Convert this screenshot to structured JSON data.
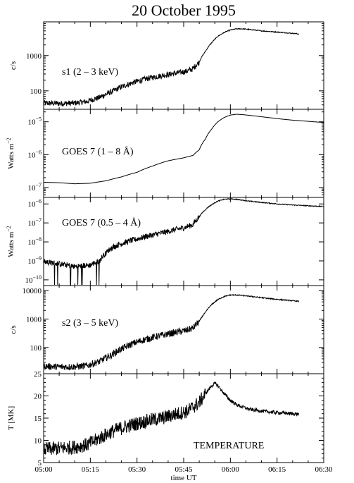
{
  "chart_data": {
    "title": "20 October 1995",
    "xlabel": "time UT",
    "x_ticks": [
      "05:00",
      "05:15",
      "05:30",
      "05:45",
      "06:00",
      "06:15",
      "06:30"
    ],
    "x_range_min": [
      0,
      90
    ],
    "panels": [
      {
        "type": "line",
        "label": "s1   (2 – 3 keV)",
        "ylabel": "c/s",
        "scale": "log",
        "ylim": [
          30,
          9000
        ],
        "ticks": [
          {
            "v": 100,
            "t": "100"
          },
          {
            "v": 1000,
            "t": "1000"
          }
        ],
        "minor_ticks": [
          40,
          50,
          60,
          70,
          80,
          90,
          200,
          300,
          400,
          500,
          600,
          700,
          800,
          900,
          2000,
          3000,
          4000,
          5000,
          6000,
          7000,
          8000,
          9000
        ],
        "noise": 0.08,
        "points": [
          [
            0,
            45
          ],
          [
            5,
            44
          ],
          [
            10,
            45
          ],
          [
            14,
            50
          ],
          [
            18,
            65
          ],
          [
            22,
            95
          ],
          [
            26,
            140
          ],
          [
            30,
            185
          ],
          [
            34,
            230
          ],
          [
            38,
            270
          ],
          [
            42,
            310
          ],
          [
            46,
            360
          ],
          [
            48,
            420
          ],
          [
            50,
            650
          ],
          [
            52,
            1300
          ],
          [
            54,
            2300
          ],
          [
            56,
            3500
          ],
          [
            58,
            4500
          ],
          [
            60,
            5300
          ],
          [
            62,
            5700
          ],
          [
            64,
            5700
          ],
          [
            66,
            5500
          ],
          [
            70,
            5000
          ],
          [
            74,
            4700
          ],
          [
            78,
            4400
          ],
          [
            82,
            4100
          ]
        ]
      },
      {
        "type": "line",
        "label": "GOES 7   (1 – 8  Å)",
        "ylabel": "Watts m",
        "ylabel_sup": "−2",
        "scale": "log",
        "ylim": [
          5e-08,
          2.4e-05
        ],
        "ticks": [
          {
            "v": 1e-07,
            "e": "−7"
          },
          {
            "v": 1e-06,
            "e": "−6"
          },
          {
            "v": 1e-05,
            "e": "−5"
          }
        ],
        "minor_ticks": [
          6e-08,
          7e-08,
          8e-08,
          9e-08,
          2e-07,
          3e-07,
          4e-07,
          5e-07,
          6e-07,
          7e-07,
          8e-07,
          9e-07,
          2e-06,
          3e-06,
          4e-06,
          5e-06,
          6e-06,
          7e-06,
          8e-06,
          9e-06,
          2e-05
        ],
        "noise": 0,
        "points": [
          [
            0,
            1.45e-07
          ],
          [
            5,
            1.4e-07
          ],
          [
            10,
            1.3e-07
          ],
          [
            15,
            1.35e-07
          ],
          [
            20,
            1.6e-07
          ],
          [
            25,
            2.1e-07
          ],
          [
            30,
            2.9e-07
          ],
          [
            35,
            4.5e-07
          ],
          [
            40,
            6.5e-07
          ],
          [
            45,
            8e-07
          ],
          [
            48,
            9.5e-07
          ],
          [
            50,
            1.4e-06
          ],
          [
            52,
            3e-06
          ],
          [
            54,
            6e-06
          ],
          [
            56,
            1e-05
          ],
          [
            58,
            1.35e-05
          ],
          [
            60,
            1.6e-05
          ],
          [
            62,
            1.7e-05
          ],
          [
            64,
            1.65e-05
          ],
          [
            68,
            1.5e-05
          ],
          [
            72,
            1.35e-05
          ],
          [
            76,
            1.22e-05
          ],
          [
            80,
            1.12e-05
          ],
          [
            84,
            1.05e-05
          ],
          [
            90,
            9.5e-06
          ]
        ]
      },
      {
        "type": "line",
        "label": "GOES 7   (0.5 – 4  Å)",
        "ylabel": "Watts m",
        "ylabel_sup": "−2",
        "scale": "log",
        "ylim": [
          5e-11,
          2.2e-06
        ],
        "ticks": [
          {
            "v": 1e-10,
            "e": "−10"
          },
          {
            "v": 1e-09,
            "e": "−9"
          },
          {
            "v": 1e-08,
            "e": "−8"
          },
          {
            "v": 1e-07,
            "e": "−7"
          },
          {
            "v": 1e-06,
            "e": "−6"
          }
        ],
        "minor_ticks": [],
        "noise": 0.15,
        "dropouts": true,
        "points": [
          [
            0,
            9e-10
          ],
          [
            5,
            7e-10
          ],
          [
            10,
            5e-10
          ],
          [
            15,
            6e-10
          ],
          [
            18,
            1e-09
          ],
          [
            20,
            2.5e-09
          ],
          [
            22,
            5e-09
          ],
          [
            25,
            8e-09
          ],
          [
            30,
            1.4e-08
          ],
          [
            35,
            2.3e-08
          ],
          [
            40,
            3.5e-08
          ],
          [
            45,
            5.5e-08
          ],
          [
            48,
            8e-08
          ],
          [
            50,
            2e-07
          ],
          [
            52,
            5e-07
          ],
          [
            54,
            9e-07
          ],
          [
            56,
            1.4e-06
          ],
          [
            58,
            1.75e-06
          ],
          [
            60,
            1.85e-06
          ],
          [
            62,
            1.75e-06
          ],
          [
            66,
            1.4e-06
          ],
          [
            70,
            1.2e-06
          ],
          [
            75,
            1e-06
          ],
          [
            80,
            8.8e-07
          ],
          [
            85,
            8e-07
          ],
          [
            90,
            7.3e-07
          ]
        ]
      },
      {
        "type": "line",
        "label": "s2   (3 – 5 keV)",
        "ylabel": "c/s",
        "scale": "log",
        "ylim": [
          12,
          15000
        ],
        "ticks": [
          {
            "v": 100,
            "t": "100"
          },
          {
            "v": 1000,
            "t": "1000"
          },
          {
            "v": 10000,
            "t": "10000"
          }
        ],
        "minor_ticks": [
          20,
          30,
          40,
          50,
          60,
          70,
          80,
          90,
          200,
          300,
          400,
          500,
          600,
          700,
          800,
          900,
          2000,
          3000,
          4000,
          5000,
          6000,
          7000,
          8000,
          9000
        ],
        "noise": 0.12,
        "points": [
          [
            0,
            22
          ],
          [
            5,
            21
          ],
          [
            10,
            21
          ],
          [
            14,
            23
          ],
          [
            18,
            32
          ],
          [
            22,
            55
          ],
          [
            26,
            100
          ],
          [
            30,
            155
          ],
          [
            34,
            210
          ],
          [
            38,
            270
          ],
          [
            42,
            330
          ],
          [
            46,
            400
          ],
          [
            48,
            480
          ],
          [
            50,
            800
          ],
          [
            52,
            1700
          ],
          [
            54,
            3200
          ],
          [
            56,
            4800
          ],
          [
            58,
            6200
          ],
          [
            60,
            7000
          ],
          [
            62,
            7000
          ],
          [
            64,
            6700
          ],
          [
            68,
            6000
          ],
          [
            72,
            5300
          ],
          [
            76,
            4800
          ],
          [
            80,
            4400
          ],
          [
            82,
            4200
          ]
        ]
      },
      {
        "type": "line",
        "label": "TEMPERATURE",
        "ylabel": "T [MK]",
        "scale": "linear",
        "ylim": [
          5,
          25
        ],
        "ticks": [
          {
            "v": 5,
            "t": "5"
          },
          {
            "v": 10,
            "t": "10"
          },
          {
            "v": 15,
            "t": "15"
          },
          {
            "v": 20,
            "t": "20"
          },
          {
            "v": 25,
            "t": "25"
          }
        ],
        "minor_ticks": [
          6,
          7,
          8,
          9,
          11,
          12,
          13,
          14,
          16,
          17,
          18,
          19,
          21,
          22,
          23,
          24
        ],
        "noise_abs": 1.6,
        "points": [
          [
            0,
            8
          ],
          [
            5,
            8.2
          ],
          [
            10,
            8.5
          ],
          [
            14,
            9
          ],
          [
            18,
            10.5
          ],
          [
            22,
            12
          ],
          [
            26,
            13
          ],
          [
            30,
            13.8
          ],
          [
            34,
            14.5
          ],
          [
            38,
            15
          ],
          [
            42,
            15.8
          ],
          [
            46,
            16.5
          ],
          [
            48,
            17.5
          ],
          [
            50,
            18.5
          ],
          [
            52,
            20.5
          ],
          [
            54,
            22.3
          ],
          [
            55,
            22.8
          ],
          [
            56,
            22.3
          ],
          [
            58,
            20.5
          ],
          [
            60,
            19
          ],
          [
            62,
            18
          ],
          [
            64,
            17.5
          ],
          [
            66,
            17
          ],
          [
            70,
            16.6
          ],
          [
            74,
            16.3
          ],
          [
            78,
            16.1
          ],
          [
            82,
            15.9
          ]
        ]
      }
    ]
  }
}
